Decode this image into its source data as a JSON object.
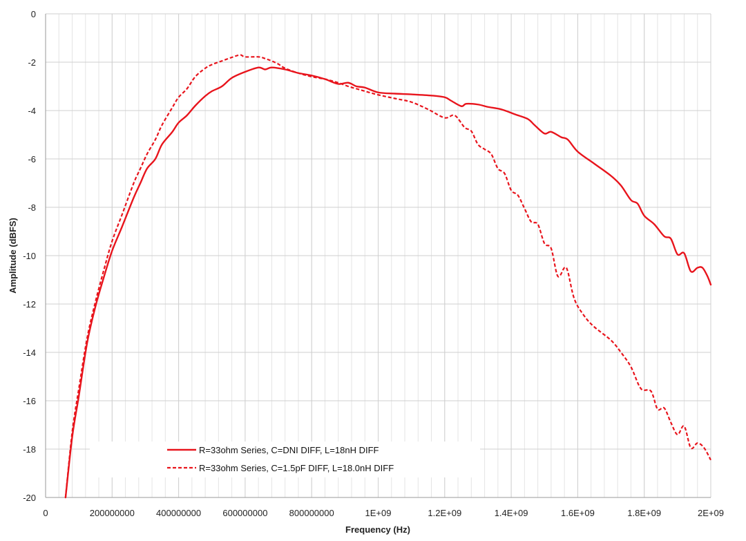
{
  "chart_data": {
    "type": "line",
    "title": "",
    "xlabel": "Frequency (Hz)",
    "ylabel": "Amplitude (dBFS)",
    "xlim": [
      0,
      2000000000
    ],
    "ylim": [
      -20,
      0
    ],
    "x_ticks": [
      0,
      200000000,
      400000000,
      600000000,
      800000000,
      1000000000,
      1200000000,
      1400000000,
      1600000000,
      1800000000,
      2000000000
    ],
    "x_tick_labels": [
      "0",
      "200000000",
      "400000000",
      "600000000",
      "800000000",
      "1E+09",
      "1.2E+09",
      "1.4E+09",
      "1.6E+09",
      "1.8E+09",
      "2E+09"
    ],
    "y_ticks": [
      0,
      -2,
      -4,
      -6,
      -8,
      -10,
      -12,
      -14,
      -16,
      -18,
      -20
    ],
    "y_tick_labels": [
      "0",
      "-2",
      "-4",
      "-6",
      "-8",
      "-10",
      "-12",
      "-14",
      "-16",
      "-18",
      "-20"
    ],
    "grid": true,
    "legend_position": "bottom-center",
    "series": [
      {
        "name": "R=33ohm Series, C=DNI DIFF, L=18nH DIFF",
        "style": "solid",
        "color": "#e8141c",
        "x": [
          60000000,
          80000000,
          100000000,
          125000000,
          150000000,
          175000000,
          200000000,
          230000000,
          265000000,
          285000000,
          305000000,
          330000000,
          350000000,
          380000000,
          400000000,
          425000000,
          450000000,
          480000000,
          500000000,
          530000000,
          560000000,
          600000000,
          640000000,
          660000000,
          680000000,
          720000000,
          760000000,
          800000000,
          840000000,
          880000000,
          910000000,
          935000000,
          960000000,
          1000000000,
          1050000000,
          1100000000,
          1160000000,
          1200000000,
          1220000000,
          1250000000,
          1265000000,
          1300000000,
          1330000000,
          1370000000,
          1410000000,
          1450000000,
          1470000000,
          1500000000,
          1520000000,
          1550000000,
          1570000000,
          1600000000,
          1650000000,
          1700000000,
          1730000000,
          1760000000,
          1780000000,
          1800000000,
          1830000000,
          1860000000,
          1880000000,
          1900000000,
          1920000000,
          1940000000,
          1960000000,
          1975000000,
          1990000000,
          2000000000
        ],
        "y": [
          -20.0,
          -17.5,
          -15.8,
          -13.6,
          -12.1,
          -10.9,
          -9.8,
          -8.8,
          -7.6,
          -7.0,
          -6.4,
          -6.0,
          -5.4,
          -4.9,
          -4.5,
          -4.2,
          -3.8,
          -3.4,
          -3.2,
          -3.0,
          -2.65,
          -2.4,
          -2.22,
          -2.3,
          -2.22,
          -2.3,
          -2.45,
          -2.55,
          -2.7,
          -2.9,
          -2.85,
          -3.0,
          -3.05,
          -3.25,
          -3.3,
          -3.33,
          -3.38,
          -3.45,
          -3.6,
          -3.82,
          -3.72,
          -3.75,
          -3.85,
          -3.95,
          -4.15,
          -4.35,
          -4.6,
          -4.95,
          -4.88,
          -5.1,
          -5.2,
          -5.7,
          -6.2,
          -6.7,
          -7.1,
          -7.7,
          -7.85,
          -8.35,
          -8.7,
          -9.2,
          -9.3,
          -9.95,
          -9.9,
          -10.65,
          -10.5,
          -10.5,
          -10.85,
          -11.2
        ]
      },
      {
        "name": "R=33ohm Series, C=1.5pF DIFF, L=18.0nH DIFF",
        "style": "dashed",
        "color": "#e8141c",
        "x": [
          60000000,
          80000000,
          100000000,
          125000000,
          150000000,
          175000000,
          200000000,
          230000000,
          265000000,
          285000000,
          305000000,
          330000000,
          350000000,
          380000000,
          400000000,
          425000000,
          450000000,
          480000000,
          500000000,
          530000000,
          560000000,
          585000000,
          600000000,
          640000000,
          660000000,
          680000000,
          700000000,
          720000000,
          760000000,
          800000000,
          840000000,
          880000000,
          910000000,
          935000000,
          960000000,
          1000000000,
          1050000000,
          1100000000,
          1150000000,
          1200000000,
          1230000000,
          1260000000,
          1280000000,
          1300000000,
          1320000000,
          1340000000,
          1360000000,
          1380000000,
          1400000000,
          1420000000,
          1440000000,
          1460000000,
          1480000000,
          1500000000,
          1520000000,
          1540000000,
          1560000000,
          1570000000,
          1590000000,
          1620000000,
          1650000000,
          1700000000,
          1730000000,
          1760000000,
          1790000000,
          1820000000,
          1840000000,
          1860000000,
          1880000000,
          1900000000,
          1920000000,
          1940000000,
          1960000000,
          1980000000,
          2000000000
        ],
        "y": [
          -20.0,
          -17.3,
          -15.5,
          -13.4,
          -11.9,
          -10.6,
          -9.4,
          -8.3,
          -7.0,
          -6.4,
          -5.8,
          -5.2,
          -4.6,
          -3.9,
          -3.45,
          -3.1,
          -2.6,
          -2.25,
          -2.1,
          -1.95,
          -1.8,
          -1.7,
          -1.78,
          -1.78,
          -1.85,
          -1.95,
          -2.08,
          -2.25,
          -2.45,
          -2.6,
          -2.7,
          -2.85,
          -3.0,
          -3.1,
          -3.2,
          -3.35,
          -3.5,
          -3.65,
          -3.95,
          -4.3,
          -4.2,
          -4.7,
          -4.85,
          -5.4,
          -5.6,
          -5.8,
          -6.4,
          -6.6,
          -7.3,
          -7.5,
          -8.05,
          -8.6,
          -8.7,
          -9.5,
          -9.7,
          -10.85,
          -10.5,
          -10.65,
          -11.8,
          -12.5,
          -12.95,
          -13.5,
          -14.0,
          -14.6,
          -15.5,
          -15.6,
          -16.35,
          -16.3,
          -16.9,
          -17.4,
          -17.05,
          -17.95,
          -17.75,
          -17.95,
          -18.45
        ]
      }
    ]
  }
}
